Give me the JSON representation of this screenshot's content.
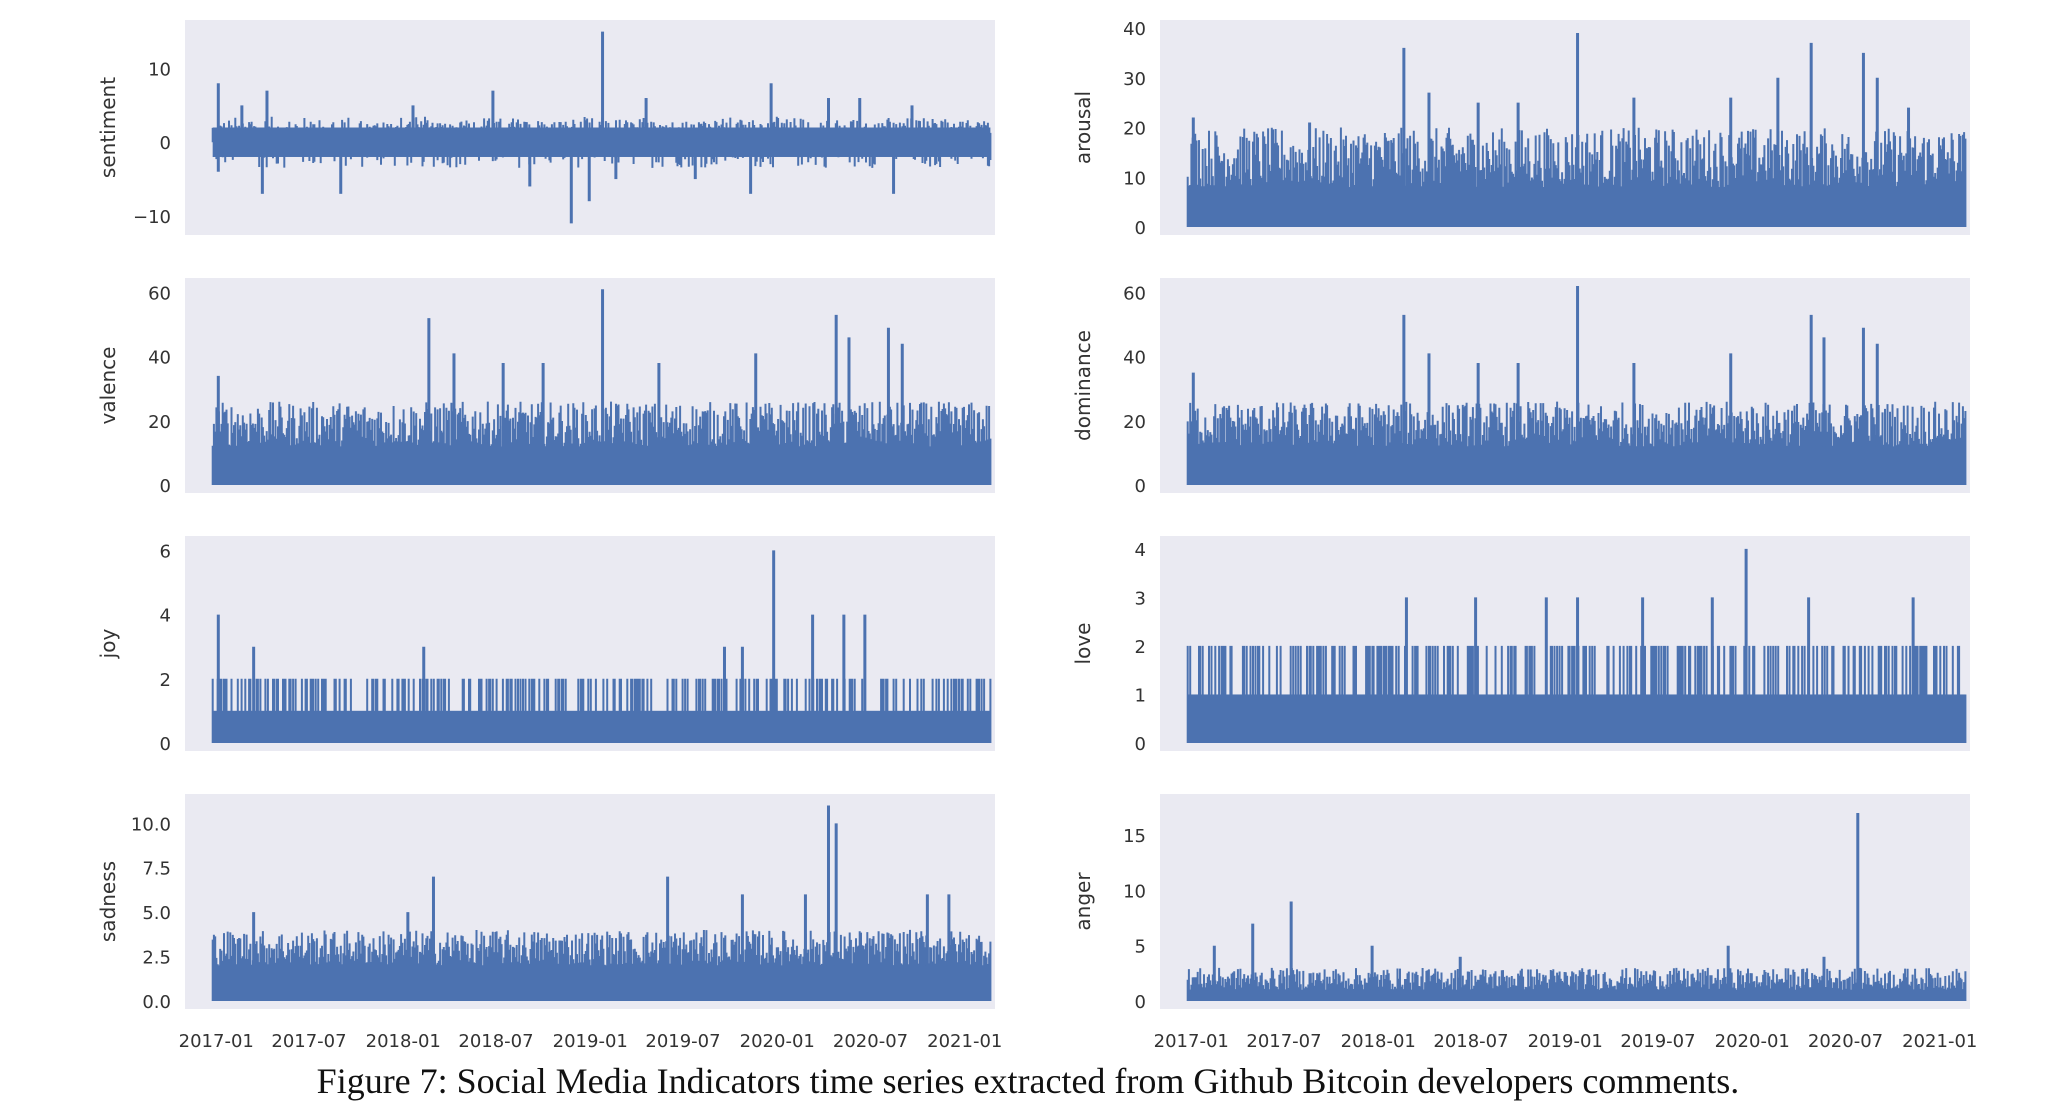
{
  "style": {
    "panel_bg": "#eaeaf2",
    "series_color": "#4c72b0",
    "text_color": "#333333"
  },
  "figure": {
    "caption": "Figure 7: Social Media Indicators time series extracted from Github Bitcoin developers comments."
  },
  "chart_data": [
    {
      "type": "area",
      "ylabel": "sentiment",
      "xlim": [
        "2016-11-01",
        "2021-03-01"
      ],
      "ylim": [
        -11.5,
        15.5
      ],
      "yticks": [
        -10,
        0,
        10
      ],
      "ytick_labels": [
        "−10",
        "0",
        "10"
      ],
      "baseline": 0,
      "signed": true,
      "typical_range": [
        -3.5,
        3.5
      ],
      "bands": [
        [
          -2,
          2
        ]
      ],
      "peaks": [
        {
          "x": "2017-01-05",
          "y": 8
        },
        {
          "x": "2017-02-20",
          "y": 5
        },
        {
          "x": "2017-04-10",
          "y": 7
        },
        {
          "x": "2018-01-20",
          "y": 5
        },
        {
          "x": "2018-06-25",
          "y": 7
        },
        {
          "x": "2019-01-25",
          "y": 15
        },
        {
          "x": "2019-04-20",
          "y": 6
        },
        {
          "x": "2019-12-20",
          "y": 8
        },
        {
          "x": "2020-04-10",
          "y": 6
        },
        {
          "x": "2020-06-10",
          "y": 6
        },
        {
          "x": "2020-09-20",
          "y": 5
        }
      ],
      "troughs": [
        {
          "x": "2017-01-05",
          "y": -4
        },
        {
          "x": "2017-04-01",
          "y": -7
        },
        {
          "x": "2017-09-01",
          "y": -7
        },
        {
          "x": "2018-09-05",
          "y": -6
        },
        {
          "x": "2018-11-25",
          "y": -11
        },
        {
          "x": "2018-12-30",
          "y": -8
        },
        {
          "x": "2019-02-20",
          "y": -5
        },
        {
          "x": "2019-07-25",
          "y": -5
        },
        {
          "x": "2019-11-10",
          "y": -7
        },
        {
          "x": "2020-08-15",
          "y": -7
        }
      ],
      "xticks": []
    },
    {
      "type": "area",
      "ylabel": "arousal",
      "xlim": [
        "2016-11-01",
        "2021-03-01"
      ],
      "ylim": [
        0,
        40
      ],
      "yticks": [
        0,
        10,
        20,
        30,
        40
      ],
      "ytick_labels": [
        "0",
        "10",
        "20",
        "30",
        "40"
      ],
      "baseline": 0,
      "signed": false,
      "typical_range": [
        8,
        20
      ],
      "bands": [
        [
          0,
          8
        ]
      ],
      "peaks": [
        {
          "x": "2017-01-05",
          "y": 22
        },
        {
          "x": "2017-08-20",
          "y": 21
        },
        {
          "x": "2018-01-15",
          "y": 18
        },
        {
          "x": "2018-02-20",
          "y": 36
        },
        {
          "x": "2018-04-10",
          "y": 27
        },
        {
          "x": "2018-07-15",
          "y": 25
        },
        {
          "x": "2018-10-01",
          "y": 25
        },
        {
          "x": "2019-01-25",
          "y": 39
        },
        {
          "x": "2019-05-15",
          "y": 26
        },
        {
          "x": "2019-11-20",
          "y": 26
        },
        {
          "x": "2020-02-20",
          "y": 30
        },
        {
          "x": "2020-04-25",
          "y": 37
        },
        {
          "x": "2020-08-05",
          "y": 35
        },
        {
          "x": "2020-09-01",
          "y": 30
        },
        {
          "x": "2020-11-01",
          "y": 24
        }
      ],
      "xticks": []
    },
    {
      "type": "area",
      "ylabel": "valence",
      "xlim": [
        "2016-11-01",
        "2021-03-01"
      ],
      "ylim": [
        0,
        62
      ],
      "yticks": [
        0,
        20,
        40,
        60
      ],
      "ytick_labels": [
        "0",
        "20",
        "40",
        "60"
      ],
      "baseline": 0,
      "signed": false,
      "typical_range": [
        12,
        26
      ],
      "bands": [
        [
          0,
          12
        ]
      ],
      "peaks": [
        {
          "x": "2017-01-05",
          "y": 34
        },
        {
          "x": "2018-02-20",
          "y": 52
        },
        {
          "x": "2018-04-10",
          "y": 41
        },
        {
          "x": "2018-07-15",
          "y": 38
        },
        {
          "x": "2018-10-01",
          "y": 38
        },
        {
          "x": "2019-01-25",
          "y": 61
        },
        {
          "x": "2019-05-15",
          "y": 38
        },
        {
          "x": "2019-11-20",
          "y": 41
        },
        {
          "x": "2020-04-25",
          "y": 53
        },
        {
          "x": "2020-05-20",
          "y": 46
        },
        {
          "x": "2020-08-05",
          "y": 49
        },
        {
          "x": "2020-09-01",
          "y": 44
        }
      ],
      "xticks": []
    },
    {
      "type": "area",
      "ylabel": "dominance",
      "xlim": [
        "2016-11-01",
        "2021-03-01"
      ],
      "ylim": [
        0,
        62
      ],
      "yticks": [
        0,
        20,
        40,
        60
      ],
      "ytick_labels": [
        "0",
        "20",
        "40",
        "60"
      ],
      "baseline": 0,
      "signed": false,
      "typical_range": [
        12,
        26
      ],
      "bands": [
        [
          0,
          12
        ]
      ],
      "peaks": [
        {
          "x": "2017-01-05",
          "y": 35
        },
        {
          "x": "2018-02-20",
          "y": 53
        },
        {
          "x": "2018-04-10",
          "y": 41
        },
        {
          "x": "2018-07-15",
          "y": 38
        },
        {
          "x": "2018-10-01",
          "y": 38
        },
        {
          "x": "2019-01-25",
          "y": 62
        },
        {
          "x": "2019-05-15",
          "y": 38
        },
        {
          "x": "2019-11-20",
          "y": 41
        },
        {
          "x": "2020-04-25",
          "y": 53
        },
        {
          "x": "2020-05-20",
          "y": 46
        },
        {
          "x": "2020-08-05",
          "y": 49
        },
        {
          "x": "2020-09-01",
          "y": 44
        }
      ],
      "xticks": []
    },
    {
      "type": "area",
      "ylabel": "joy",
      "xlim": [
        "2016-11-01",
        "2021-03-01"
      ],
      "ylim": [
        0,
        6.2
      ],
      "yticks": [
        0,
        2,
        4,
        6
      ],
      "ytick_labels": [
        "0",
        "2",
        "4",
        "6"
      ],
      "baseline": 0,
      "signed": false,
      "typical_range": [
        1,
        2
      ],
      "bands": [
        [
          0,
          1
        ]
      ],
      "discrete": true,
      "peaks": [
        {
          "x": "2017-01-05",
          "y": 4
        },
        {
          "x": "2019-12-25",
          "y": 6
        },
        {
          "x": "2020-03-10",
          "y": 4
        },
        {
          "x": "2020-05-10",
          "y": 4
        },
        {
          "x": "2020-06-20",
          "y": 4
        },
        {
          "x": "2019-09-20",
          "y": 3
        },
        {
          "x": "2019-10-25",
          "y": 3
        },
        {
          "x": "2018-02-10",
          "y": 3
        },
        {
          "x": "2017-03-15",
          "y": 3
        }
      ],
      "xticks": []
    },
    {
      "type": "area",
      "ylabel": "love",
      "xlim": [
        "2016-11-01",
        "2021-03-01"
      ],
      "ylim": [
        0,
        4.1
      ],
      "yticks": [
        0,
        1,
        2,
        3,
        4
      ],
      "ytick_labels": [
        "0",
        "1",
        "2",
        "3",
        "4"
      ],
      "baseline": 0,
      "signed": false,
      "typical_range": [
        1,
        2
      ],
      "bands": [
        [
          0,
          1
        ]
      ],
      "discrete": true,
      "peaks": [
        {
          "x": "2018-02-25",
          "y": 3
        },
        {
          "x": "2018-07-10",
          "y": 3
        },
        {
          "x": "2018-11-25",
          "y": 3
        },
        {
          "x": "2019-01-25",
          "y": 3
        },
        {
          "x": "2019-06-01",
          "y": 3
        },
        {
          "x": "2019-10-15",
          "y": 3
        },
        {
          "x": "2019-12-20",
          "y": 4
        },
        {
          "x": "2020-04-20",
          "y": 3
        },
        {
          "x": "2020-11-10",
          "y": 3
        }
      ],
      "xticks": []
    },
    {
      "type": "area",
      "ylabel": "sadness",
      "xlim": [
        "2016-11-01",
        "2021-03-01"
      ],
      "ylim": [
        0,
        11.2
      ],
      "yticks": [
        0,
        2.5,
        5,
        7.5,
        10
      ],
      "ytick_labels": [
        "0.0",
        "2.5",
        "5.0",
        "7.5",
        "10.0"
      ],
      "baseline": 0,
      "signed": false,
      "typical_range": [
        2,
        4
      ],
      "bands": [
        [
          0,
          2
        ]
      ],
      "peaks": [
        {
          "x": "2018-03-01",
          "y": 7
        },
        {
          "x": "2019-06-01",
          "y": 7
        },
        {
          "x": "2019-10-25",
          "y": 6
        },
        {
          "x": "2020-02-25",
          "y": 6
        },
        {
          "x": "2020-04-10",
          "y": 11
        },
        {
          "x": "2020-04-25",
          "y": 10
        },
        {
          "x": "2020-10-20",
          "y": 6
        },
        {
          "x": "2020-12-01",
          "y": 6
        },
        {
          "x": "2017-03-15",
          "y": 5
        },
        {
          "x": "2018-01-10",
          "y": 5
        }
      ],
      "xticks": []
    },
    {
      "type": "area",
      "ylabel": "anger",
      "xlim": [
        "2016-11-01",
        "2021-03-01"
      ],
      "ylim": [
        0,
        18
      ],
      "yticks": [
        0,
        5,
        10,
        15
      ],
      "ytick_labels": [
        "0",
        "5",
        "10",
        "15"
      ],
      "baseline": 0,
      "signed": false,
      "typical_range": [
        1,
        3
      ],
      "bands": [
        [
          0,
          1
        ]
      ],
      "peaks": [
        {
          "x": "2017-05-01",
          "y": 7
        },
        {
          "x": "2017-07-15",
          "y": 9
        },
        {
          "x": "2017-02-15",
          "y": 5
        },
        {
          "x": "2017-12-20",
          "y": 5
        },
        {
          "x": "2018-06-10",
          "y": 4
        },
        {
          "x": "2019-11-15",
          "y": 5
        },
        {
          "x": "2020-07-25",
          "y": 17
        },
        {
          "x": "2020-05-20",
          "y": 4
        }
      ],
      "xticks": []
    }
  ],
  "xaxis": {
    "tick_labels": [
      "2017-01",
      "2017-07",
      "2018-01",
      "2018-07",
      "2019-01",
      "2019-07",
      "2020-01",
      "2020-07",
      "2021-01"
    ]
  }
}
